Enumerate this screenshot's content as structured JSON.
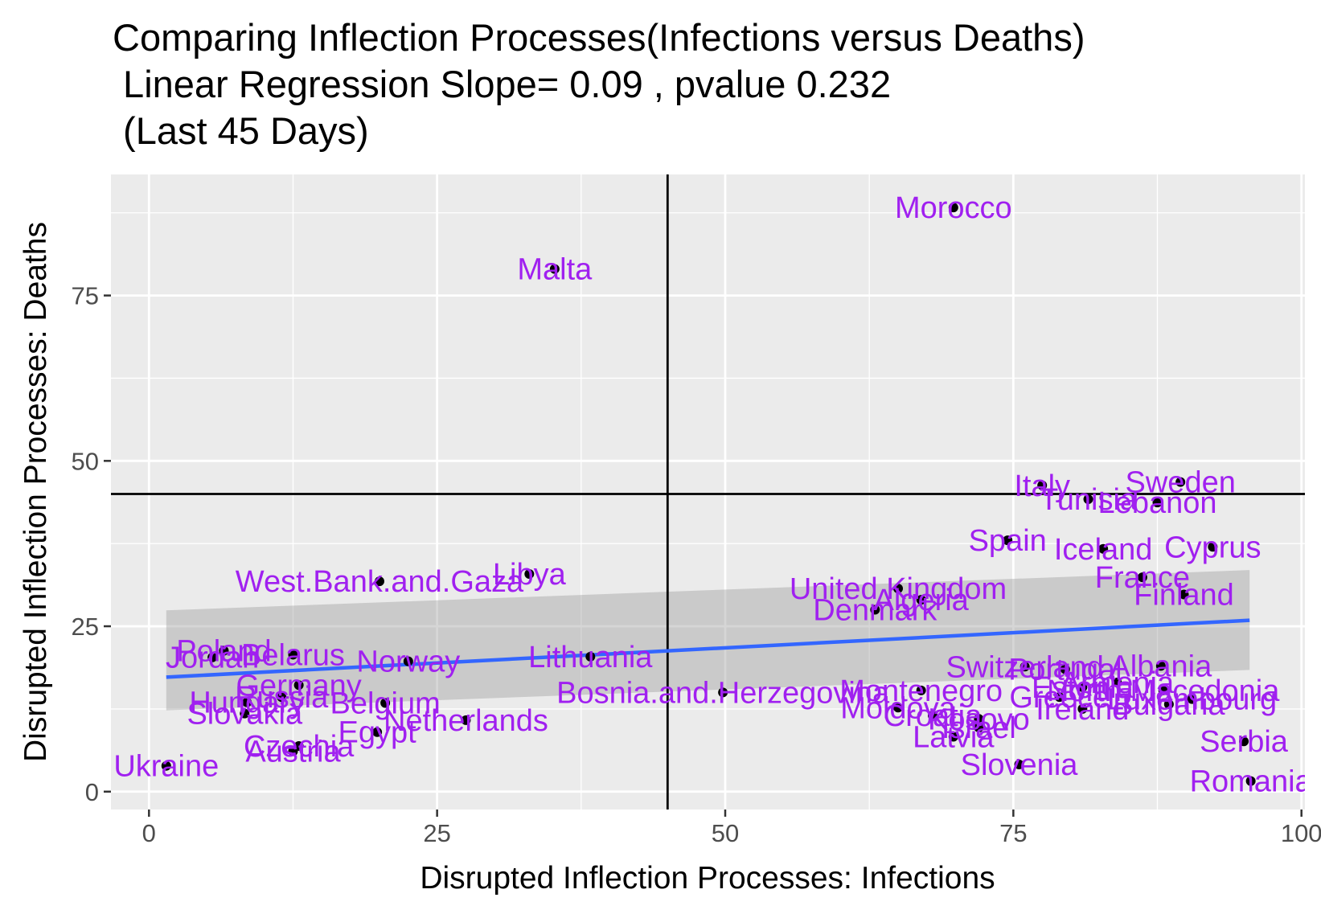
{
  "chart_data": {
    "type": "scatter",
    "title_lines": [
      "Comparing Inflection Processes(Infections versus Deaths)",
      " Linear Regression Slope= 0.09 , pvalue 0.232",
      " (Last 45 Days)"
    ],
    "xlabel": "Disrupted Inflection Processes: Infections",
    "ylabel": "Disrupted Inflection Processes: Deaths",
    "xlim": [
      -3.3,
      100.3
    ],
    "ylim": [
      -2.7,
      93.3
    ],
    "x_ticks": [
      0,
      25,
      50,
      75,
      100
    ],
    "x_tick_labels": [
      "0",
      "25",
      "50",
      "75",
      "100"
    ],
    "y_ticks": [
      0,
      25,
      50,
      75
    ],
    "y_tick_labels": [
      "0",
      "25",
      "50",
      "75"
    ],
    "reference_lines": {
      "vertical_x": 45,
      "horizontal_y": 45
    },
    "regression": {
      "x_start": 1.5,
      "y_start": 17.3,
      "x_end": 95.5,
      "y_end": 25.9,
      "band_start": [
        12.3,
        27.4
      ],
      "band_end": [
        18.4,
        33.5
      ]
    },
    "grid": true,
    "panel_background": "#ebebeb",
    "grid_color": "#ffffff",
    "point_color": "#000000",
    "label_color": "#a020f0",
    "line_color": "#3366ff",
    "band_color": "#999999",
    "points": [
      {
        "label": "Morocco",
        "x": 69.8,
        "y": 88.3
      },
      {
        "label": "Malta",
        "x": 35.2,
        "y": 79.0
      },
      {
        "label": "Italy",
        "x": 77.5,
        "y": 46.3
      },
      {
        "label": "Sweden",
        "x": 89.5,
        "y": 46.8
      },
      {
        "label": "Tunisia",
        "x": 81.5,
        "y": 44.2
      },
      {
        "label": "Lebanon",
        "x": 87.5,
        "y": 43.7
      },
      {
        "label": "Spain",
        "x": 74.5,
        "y": 38.0
      },
      {
        "label": "Iceland",
        "x": 82.8,
        "y": 36.7
      },
      {
        "label": "Cyprus",
        "x": 92.3,
        "y": 37.0
      },
      {
        "label": "France",
        "x": 86.2,
        "y": 32.4
      },
      {
        "label": "Finland",
        "x": 89.8,
        "y": 29.8
      },
      {
        "label": "West.Bank.and.Gaza",
        "x": 20.0,
        "y": 31.8
      },
      {
        "label": "Libya",
        "x": 33.0,
        "y": 32.9
      },
      {
        "label": "United Kingdom",
        "x": 65.0,
        "y": 30.7
      },
      {
        "label": "Algeria",
        "x": 67.0,
        "y": 29.0
      },
      {
        "label": "Denmark",
        "x": 63.0,
        "y": 27.5
      },
      {
        "label": "Poland",
        "x": 6.5,
        "y": 21.3
      },
      {
        "label": "Jordan",
        "x": 5.5,
        "y": 20.3
      },
      {
        "label": "Belarus",
        "x": 12.5,
        "y": 20.7
      },
      {
        "label": "Norway",
        "x": 22.5,
        "y": 19.7
      },
      {
        "label": "Lithuania",
        "x": 38.3,
        "y": 20.4
      },
      {
        "label": "Germany",
        "x": 13.0,
        "y": 16.1
      },
      {
        "label": "Hungary",
        "x": 8.5,
        "y": 13.5
      },
      {
        "label": "Russia",
        "x": 11.5,
        "y": 14.3
      },
      {
        "label": "Belgium",
        "x": 20.5,
        "y": 13.4
      },
      {
        "label": "Slovakia",
        "x": 8.3,
        "y": 11.8
      },
      {
        "label": "Bosnia.and.Herzegovina",
        "x": 49.8,
        "y": 15.0
      },
      {
        "label": "Netherlands",
        "x": 27.5,
        "y": 10.8
      },
      {
        "label": "Egypt",
        "x": 19.8,
        "y": 9.0
      },
      {
        "label": "Czechia",
        "x": 13.0,
        "y": 6.9
      },
      {
        "label": "Austria",
        "x": 12.5,
        "y": 6.1
      },
      {
        "label": "Ukraine",
        "x": 1.5,
        "y": 3.9
      },
      {
        "label": "Switzerland",
        "x": 76.0,
        "y": 18.9
      },
      {
        "label": "Portugal",
        "x": 79.5,
        "y": 18.5
      },
      {
        "label": "Albania",
        "x": 87.8,
        "y": 19.0
      },
      {
        "label": "Montenegro",
        "x": 67.0,
        "y": 15.3
      },
      {
        "label": "Moldova",
        "x": 65.0,
        "y": 12.7
      },
      {
        "label": "Croatia",
        "x": 68.0,
        "y": 11.5
      },
      {
        "label": "Estonia",
        "x": 81.0,
        "y": 15.8
      },
      {
        "label": "Greece",
        "x": 79.0,
        "y": 14.3
      },
      {
        "label": "Kosovo",
        "x": 72.0,
        "y": 11.0
      },
      {
        "label": "Israel",
        "x": 72.0,
        "y": 9.7
      },
      {
        "label": "Ireland",
        "x": 81.0,
        "y": 12.5
      },
      {
        "label": "Armenia",
        "x": 84.0,
        "y": 16.5
      },
      {
        "label": "Luxembourg",
        "x": 90.5,
        "y": 14.0
      },
      {
        "label": "North.Macedonia",
        "x": 88.0,
        "y": 15.3
      },
      {
        "label": "Bulgaria",
        "x": 88.5,
        "y": 13.2
      },
      {
        "label": "Latvia",
        "x": 69.8,
        "y": 8.3
      },
      {
        "label": "Serbia",
        "x": 95.0,
        "y": 7.6
      },
      {
        "label": "Slovenia",
        "x": 75.5,
        "y": 4.1
      },
      {
        "label": "Romania",
        "x": 95.6,
        "y": 1.6
      }
    ]
  }
}
